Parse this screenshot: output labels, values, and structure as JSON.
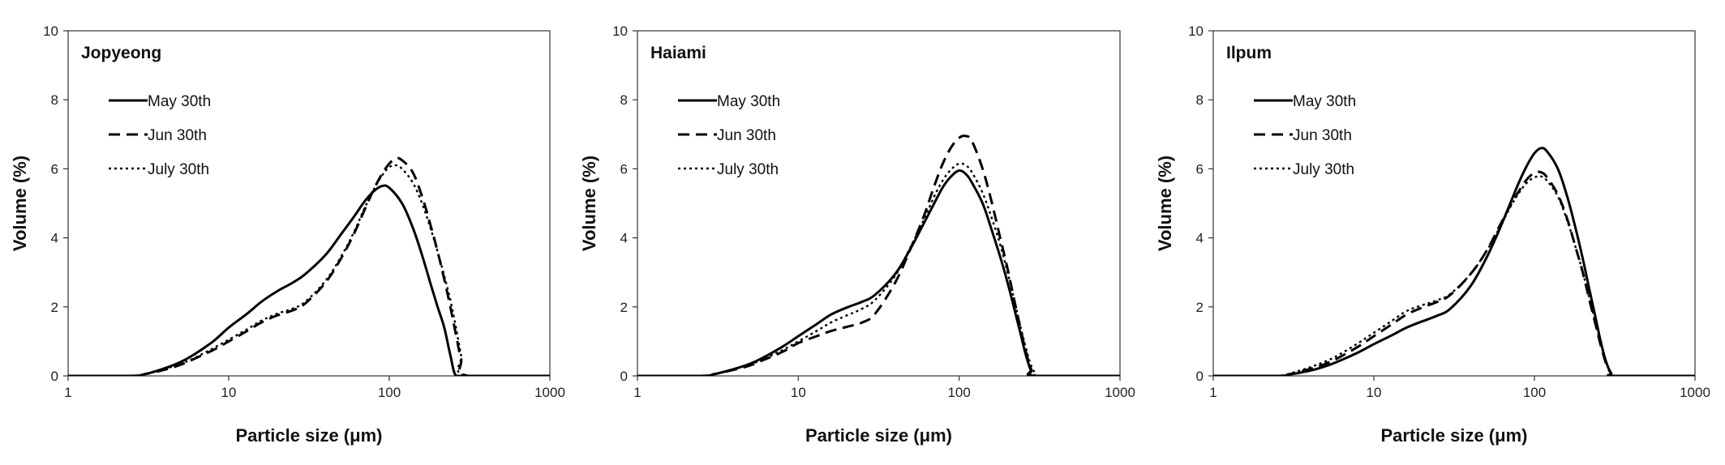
{
  "chart_data": [
    {
      "type": "line",
      "title": "Jopyeong",
      "xlabel": "Particle size (μm)",
      "ylabel": "Volume (%)",
      "xscale": "log",
      "xlim": [
        1,
        1000
      ],
      "ylim": [
        0,
        10
      ],
      "x_ticks": [
        "1",
        "10",
        "100",
        "1000"
      ],
      "y_ticks": [
        "0",
        "2",
        "4",
        "6",
        "8",
        "10"
      ],
      "grid": false,
      "legend_position": "top-left",
      "series": [
        {
          "name": "May 30th",
          "style": "solid",
          "x": [
            1,
            2.4,
            3,
            4,
            5,
            6,
            8,
            10,
            13,
            16,
            20,
            25,
            30,
            40,
            50,
            60,
            70,
            80,
            90,
            100,
            120,
            140,
            160,
            180,
            200,
            220,
            240,
            260,
            300,
            1000
          ],
          "y": [
            0,
            0,
            0.05,
            0.22,
            0.4,
            0.6,
            1.0,
            1.4,
            1.8,
            2.15,
            2.45,
            2.7,
            2.95,
            3.5,
            4.1,
            4.6,
            5.05,
            5.35,
            5.5,
            5.45,
            5.0,
            4.3,
            3.5,
            2.7,
            2.0,
            1.4,
            0.6,
            0,
            0,
            0
          ]
        },
        {
          "name": "Jun 30th",
          "style": "dashed",
          "x": [
            1,
            2.5,
            3,
            4,
            5,
            6,
            8,
            10,
            13,
            16,
            20,
            25,
            30,
            40,
            50,
            60,
            70,
            80,
            90,
            100,
            110,
            120,
            140,
            160,
            180,
            200,
            220,
            240,
            260,
            280,
            310,
            1000
          ],
          "y": [
            0,
            0,
            0.05,
            0.18,
            0.32,
            0.48,
            0.75,
            1.0,
            1.3,
            1.55,
            1.75,
            1.9,
            2.1,
            2.7,
            3.4,
            4.1,
            4.8,
            5.4,
            5.85,
            6.15,
            6.3,
            6.25,
            5.9,
            5.2,
            4.4,
            3.6,
            2.8,
            2.0,
            1.2,
            0.5,
            0,
            0
          ]
        },
        {
          "name": "July 30th",
          "style": "dotted",
          "x": [
            1,
            2.5,
            3,
            4,
            5,
            6,
            8,
            10,
            13,
            16,
            20,
            25,
            30,
            40,
            50,
            60,
            70,
            80,
            90,
            100,
            110,
            120,
            140,
            160,
            180,
            200,
            220,
            240,
            260,
            280,
            300,
            1000
          ],
          "y": [
            0,
            0,
            0.05,
            0.2,
            0.35,
            0.5,
            0.8,
            1.05,
            1.35,
            1.6,
            1.8,
            1.95,
            2.15,
            2.75,
            3.45,
            4.15,
            4.85,
            5.4,
            5.8,
            6.05,
            6.1,
            6.0,
            5.6,
            5.0,
            4.3,
            3.6,
            2.9,
            2.2,
            1.4,
            0.6,
            0,
            0
          ]
        }
      ]
    },
    {
      "type": "line",
      "title": "Haiami",
      "xlabel": "Particle size (μm)",
      "ylabel": "Volume (%)",
      "xscale": "log",
      "xlim": [
        1,
        1000
      ],
      "ylim": [
        0,
        10
      ],
      "x_ticks": [
        "1",
        "10",
        "100",
        "1000"
      ],
      "y_ticks": [
        "0",
        "2",
        "4",
        "6",
        "8",
        "10"
      ],
      "grid": false,
      "legend_position": "top-left",
      "series": [
        {
          "name": "May 30th",
          "style": "solid",
          "x": [
            1,
            2.5,
            3,
            4,
            5,
            6,
            8,
            10,
            13,
            16,
            20,
            25,
            30,
            40,
            50,
            60,
            70,
            80,
            90,
            100,
            110,
            120,
            140,
            160,
            180,
            200,
            220,
            240,
            260,
            280,
            300,
            1000
          ],
          "y": [
            0,
            0,
            0.05,
            0.2,
            0.35,
            0.52,
            0.85,
            1.15,
            1.5,
            1.78,
            1.98,
            2.15,
            2.35,
            2.95,
            3.7,
            4.4,
            5.0,
            5.5,
            5.8,
            5.95,
            5.85,
            5.6,
            5.0,
            4.2,
            3.45,
            2.7,
            1.95,
            1.25,
            0.6,
            0.15,
            0,
            0
          ]
        },
        {
          "name": "Jun 30th",
          "style": "dashed",
          "x": [
            1,
            2.5,
            3,
            4,
            5,
            6,
            8,
            10,
            13,
            16,
            20,
            25,
            30,
            40,
            50,
            60,
            70,
            80,
            90,
            100,
            110,
            120,
            140,
            160,
            180,
            200,
            220,
            240,
            260,
            280,
            300,
            1000
          ],
          "y": [
            0,
            0,
            0.05,
            0.18,
            0.3,
            0.45,
            0.7,
            0.95,
            1.15,
            1.3,
            1.42,
            1.55,
            1.8,
            2.7,
            3.7,
            4.6,
            5.5,
            6.2,
            6.65,
            6.9,
            6.95,
            6.8,
            6.0,
            5.0,
            4.0,
            3.1,
            2.2,
            1.4,
            0.7,
            0.2,
            0,
            0
          ]
        },
        {
          "name": "July 30th",
          "style": "dotted",
          "x": [
            1,
            2.5,
            3,
            4,
            5,
            6,
            8,
            10,
            13,
            16,
            20,
            25,
            30,
            40,
            50,
            60,
            70,
            80,
            90,
            100,
            110,
            120,
            140,
            160,
            180,
            200,
            220,
            240,
            260,
            280,
            300,
            310,
            1000
          ],
          "y": [
            0,
            0,
            0.05,
            0.2,
            0.33,
            0.48,
            0.75,
            1.0,
            1.3,
            1.55,
            1.75,
            1.95,
            2.2,
            2.9,
            3.75,
            4.5,
            5.2,
            5.7,
            6.0,
            6.15,
            6.1,
            5.9,
            5.3,
            4.55,
            3.8,
            3.0,
            2.2,
            1.45,
            0.8,
            0.3,
            0.05,
            0,
            0
          ]
        }
      ]
    },
    {
      "type": "line",
      "title": "Ilpum",
      "xlabel": "Particle size (μm)",
      "ylabel": "Volume (%)",
      "xscale": "log",
      "xlim": [
        1,
        1000
      ],
      "ylim": [
        0,
        10
      ],
      "x_ticks": [
        "1",
        "10",
        "100",
        "1000"
      ],
      "y_ticks": [
        "0",
        "2",
        "4",
        "6",
        "8",
        "10"
      ],
      "grid": false,
      "legend_position": "top-left",
      "series": [
        {
          "name": "May 30th",
          "style": "solid",
          "x": [
            1,
            2.5,
            3,
            4,
            5,
            6,
            8,
            10,
            13,
            16,
            20,
            25,
            30,
            40,
            50,
            60,
            70,
            80,
            90,
            100,
            110,
            120,
            140,
            160,
            180,
            200,
            220,
            240,
            260,
            280,
            300,
            320,
            1000
          ],
          "y": [
            0,
            0,
            0.04,
            0.15,
            0.28,
            0.42,
            0.68,
            0.92,
            1.18,
            1.4,
            1.58,
            1.75,
            1.95,
            2.6,
            3.4,
            4.2,
            4.95,
            5.6,
            6.1,
            6.45,
            6.6,
            6.5,
            6.0,
            5.2,
            4.3,
            3.4,
            2.5,
            1.7,
            0.95,
            0.4,
            0.08,
            0,
            0
          ]
        },
        {
          "name": "Jun 30th",
          "style": "dashed",
          "x": [
            1,
            2.5,
            3,
            4,
            5,
            6,
            8,
            10,
            13,
            16,
            20,
            25,
            30,
            40,
            50,
            60,
            70,
            80,
            90,
            100,
            110,
            120,
            140,
            160,
            180,
            200,
            220,
            240,
            260,
            280,
            300,
            320,
            1000
          ],
          "y": [
            0,
            0,
            0.05,
            0.2,
            0.35,
            0.52,
            0.85,
            1.15,
            1.5,
            1.78,
            1.98,
            2.15,
            2.35,
            2.95,
            3.6,
            4.3,
            4.9,
            5.35,
            5.7,
            5.88,
            5.9,
            5.75,
            5.25,
            4.55,
            3.75,
            3.0,
            2.2,
            1.5,
            0.85,
            0.35,
            0.07,
            0,
            0
          ]
        },
        {
          "name": "July 30th",
          "style": "dotted",
          "x": [
            1,
            2.4,
            3,
            4,
            5,
            6,
            8,
            10,
            13,
            16,
            20,
            25,
            30,
            40,
            50,
            60,
            70,
            80,
            90,
            100,
            110,
            120,
            140,
            160,
            180,
            200,
            220,
            240,
            260,
            280,
            300,
            320,
            1000
          ],
          "y": [
            0,
            0,
            0.07,
            0.25,
            0.42,
            0.6,
            0.95,
            1.25,
            1.6,
            1.88,
            2.05,
            2.2,
            2.38,
            2.95,
            3.6,
            4.25,
            4.85,
            5.3,
            5.6,
            5.75,
            5.78,
            5.65,
            5.2,
            4.5,
            3.75,
            3.0,
            2.25,
            1.55,
            0.9,
            0.4,
            0.1,
            0,
            0
          ]
        }
      ]
    }
  ]
}
